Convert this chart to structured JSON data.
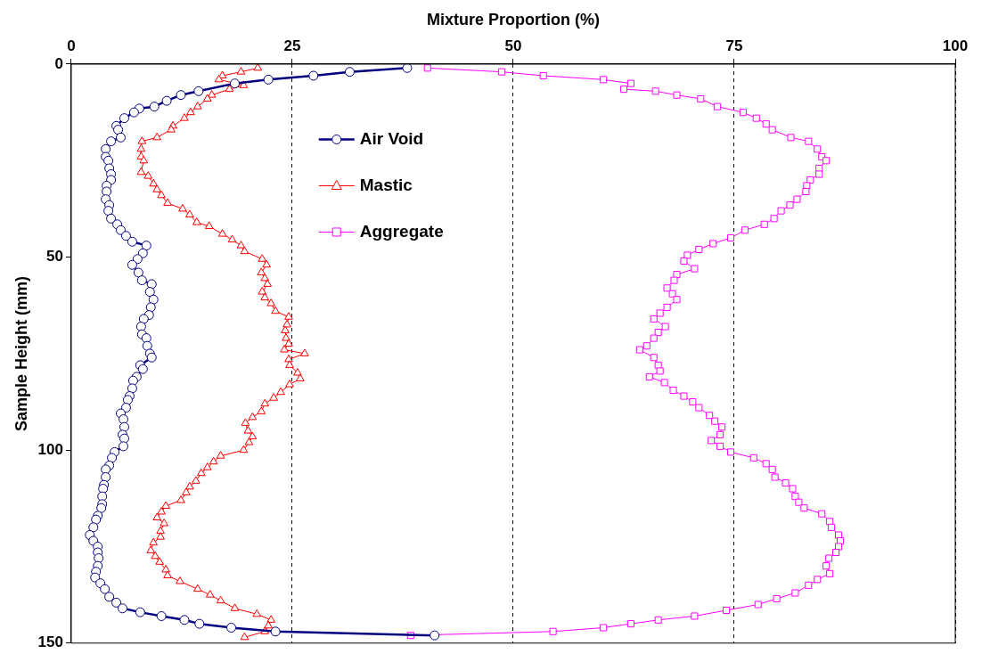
{
  "chart_data": {
    "type": "line",
    "xlabel": "Mixture Proportion (%)",
    "ylabel": "Sample Height (mm)",
    "xlim": [
      0,
      100
    ],
    "xticks": [
      0,
      25,
      50,
      75,
      100
    ],
    "ylim": [
      150,
      0
    ],
    "yticks": [
      0,
      50,
      100,
      150
    ],
    "grid": "x",
    "legend": "top left",
    "line_style": "solid",
    "series": [
      {
        "name": "Air Void",
        "color": "#000080",
        "marker": "circle",
        "x": [
          38.0,
          31.5,
          27.4,
          22.3,
          18.5,
          14.4,
          12.4,
          10.8,
          9.4,
          7.7,
          7.1,
          6.0,
          5.1,
          5.3,
          5.6,
          4.5,
          3.9,
          3.9,
          4.2,
          4.3,
          4.5,
          4.5,
          4.0,
          4.0,
          3.9,
          4.3,
          4.2,
          4.5,
          5.2,
          5.6,
          6.2,
          6.9,
          8.5,
          8.1,
          7.5,
          6.9,
          7.6,
          8.0,
          9.1,
          8.9,
          9.3,
          9.0,
          8.8,
          8.2,
          7.9,
          8.0,
          8.5,
          8.6,
          8.9,
          9.1,
          7.8,
          8.1,
          7.4,
          7.0,
          6.9,
          6.6,
          6.4,
          6.2,
          5.6,
          5.9,
          6.0,
          5.8,
          6.0,
          5.9,
          4.9,
          4.6,
          4.3,
          3.9,
          3.9,
          3.7,
          3.6,
          3.5,
          3.5,
          3.4,
          3.0,
          2.8,
          2.5,
          2.1,
          2.5,
          3.0,
          3.0,
          3.1,
          3.0,
          2.8,
          2.7,
          3.3,
          3.8,
          4.3,
          5.1,
          5.8,
          7.8,
          10.2,
          12.8,
          14.5,
          18.1,
          23.1,
          41.1
        ],
        "values": [
          1,
          2,
          3,
          4,
          5,
          7,
          8,
          9.5,
          11,
          11.5,
          12.5,
          14,
          16,
          17,
          19,
          20,
          22,
          24,
          25,
          27,
          28.5,
          30,
          31.5,
          33,
          35,
          36.5,
          38,
          40,
          41.5,
          43,
          44.5,
          46,
          47,
          49,
          50.5,
          52,
          54,
          56,
          57,
          59,
          61,
          63,
          65,
          66,
          68,
          70,
          71,
          73,
          75,
          76,
          78,
          79,
          81,
          82,
          84,
          86,
          87,
          89,
          90.5,
          92,
          94,
          96,
          97,
          99,
          100.5,
          102,
          104,
          105,
          107,
          109,
          110,
          112,
          114,
          115,
          117,
          118,
          120,
          122,
          123.5,
          125,
          126.5,
          128,
          130,
          131.5,
          133,
          134.5,
          136,
          138,
          139.5,
          141,
          142,
          143,
          144,
          145,
          146,
          147,
          148
        ]
      },
      {
        "name": "Mastic",
        "color": "#ff0000",
        "marker": "triangle",
        "x": [
          21.1,
          19.2,
          17.1,
          16.7,
          19.5,
          17.9,
          15.9,
          15.4,
          14.3,
          13.5,
          12.8,
          11.5,
          11.3,
          9.7,
          8.0,
          7.9,
          7.9,
          8.2,
          7.9,
          8.7,
          9.3,
          9.7,
          10.2,
          10.9,
          12.6,
          13.4,
          14.2,
          15.6,
          17.1,
          18.2,
          19.2,
          19.6,
          21.6,
          22.1,
          21.5,
          21.9,
          22.2,
          21.6,
          21.9,
          22.6,
          23.1,
          24.6,
          24.4,
          24.2,
          24.3,
          24.6,
          24.1,
          26.4,
          24.6,
          24.7,
          25.6,
          25.9,
          24.7,
          23.7,
          22.9,
          21.9,
          21.5,
          20.5,
          19.7,
          20.0,
          20.5,
          20.1,
          19.5,
          16.9,
          16.1,
          15.4,
          14.7,
          14.1,
          13.4,
          13.0,
          12.4,
          10.7,
          10.2,
          9.7,
          10.5,
          10.1,
          10.1,
          9.3,
          9.0,
          9.5,
          10.0,
          10.7,
          10.9,
          12.3,
          14.3,
          15.7,
          16.9,
          18.5,
          21.0,
          22.6,
          22.3,
          21.9,
          19.6
        ],
        "values": [
          1,
          2,
          3,
          4,
          5.5,
          6.5,
          8,
          9,
          11,
          12.5,
          14,
          16,
          17,
          19,
          20,
          22,
          24,
          25,
          28,
          29,
          31,
          32.5,
          34,
          36,
          37.5,
          39,
          41,
          42,
          44,
          45.5,
          47,
          48.5,
          50.5,
          52,
          54,
          55.5,
          57,
          59,
          60.5,
          62,
          64,
          65.5,
          67.5,
          69,
          71,
          72.5,
          74,
          75,
          76.5,
          78,
          80,
          81.5,
          83,
          85,
          86.5,
          88,
          90,
          91.5,
          93,
          95,
          96.5,
          98,
          100,
          101.5,
          103,
          104.5,
          106,
          108,
          109.5,
          111,
          113,
          114.5,
          116,
          117.5,
          119,
          121,
          122.5,
          124,
          126,
          127.5,
          129,
          131,
          132.5,
          134,
          136,
          137.5,
          139,
          141,
          142.5,
          144,
          145.5,
          147,
          148.5
        ]
      },
      {
        "name": "Aggregate",
        "color": "#ff00ff",
        "marker": "square",
        "x": [
          40.3,
          48.7,
          53.4,
          60.2,
          63.3,
          62.5,
          66.1,
          68.5,
          71.2,
          73.1,
          76.0,
          77.5,
          78.6,
          79.3,
          81.4,
          83.4,
          84.4,
          84.9,
          85.4,
          84.6,
          84.6,
          83.6,
          83.2,
          83.1,
          82.1,
          81.3,
          80.3,
          79.5,
          78.4,
          76.2,
          74.6,
          72.6,
          71.0,
          69.7,
          69.3,
          70.5,
          68.5,
          68.2,
          67.4,
          68.0,
          68.5,
          67.4,
          66.6,
          65.9,
          67.2,
          66.4,
          65.9,
          65.1,
          64.3,
          65.9,
          66.4,
          66.6,
          65.4,
          67.1,
          68.1,
          69.3,
          70.3,
          71.0,
          72.2,
          72.8,
          73.6,
          73.4,
          72.4,
          73.4,
          74.6,
          77.2,
          78.6,
          79.3,
          79.6,
          80.8,
          81.6,
          81.9,
          82.3,
          82.9,
          84.9,
          85.8,
          86.0,
          86.8,
          87.0,
          86.8,
          86.5,
          85.7,
          85.4,
          85.8,
          84.4,
          83.4,
          81.9,
          79.8,
          77.7,
          74.1,
          70.5,
          66.4,
          63.3,
          60.2,
          54.5,
          38.4
        ],
        "values": [
          1,
          2,
          3,
          4,
          5,
          6.5,
          7,
          8,
          9,
          11,
          12.5,
          14,
          15.5,
          17,
          19,
          20,
          22,
          24,
          25,
          27,
          28.5,
          30,
          31.5,
          33,
          35,
          36.5,
          38,
          40,
          41.5,
          43,
          45,
          46.5,
          48,
          49.5,
          51,
          53,
          54.5,
          56,
          58,
          59.5,
          61,
          63,
          64.5,
          66,
          68,
          69.5,
          71,
          73,
          74,
          76,
          78,
          79.5,
          81,
          82.5,
          84.5,
          86,
          87.5,
          89,
          91,
          92.5,
          94,
          96,
          97.5,
          99,
          100.5,
          102,
          103.5,
          105,
          107,
          108.5,
          110,
          112,
          113.5,
          115,
          116.5,
          118.5,
          120,
          122,
          123.5,
          125,
          126.5,
          128,
          130,
          132,
          133.5,
          135,
          137,
          138.5,
          140,
          141.5,
          143,
          144,
          145,
          146,
          147,
          148
        ]
      }
    ]
  }
}
